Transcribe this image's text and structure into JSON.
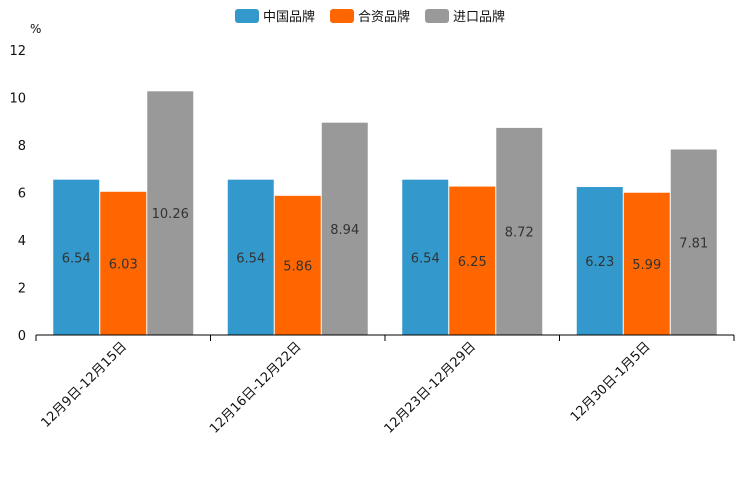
{
  "chart_data": {
    "type": "bar",
    "title": "",
    "unit": "%",
    "xlabel": "",
    "ylabel": "%",
    "ylim": [
      0,
      12
    ],
    "yticks": [
      0,
      2,
      4,
      6,
      8,
      10,
      12
    ],
    "grid": false,
    "legend_position": "top-center",
    "categories": [
      "12月9日-12月15日",
      "12月16日-12月22日",
      "12月23日-12月29日",
      "12月30日-1月5日"
    ],
    "series": [
      {
        "name": "中国品牌",
        "color": "#3399CC",
        "values": [
          6.54,
          6.54,
          6.54,
          6.23
        ]
      },
      {
        "name": "合资品牌",
        "color": "#FF6600",
        "values": [
          6.03,
          5.86,
          6.25,
          5.99
        ]
      },
      {
        "name": "进口品牌",
        "color": "#999999",
        "values": [
          10.26,
          8.94,
          8.72,
          7.81
        ]
      }
    ]
  }
}
